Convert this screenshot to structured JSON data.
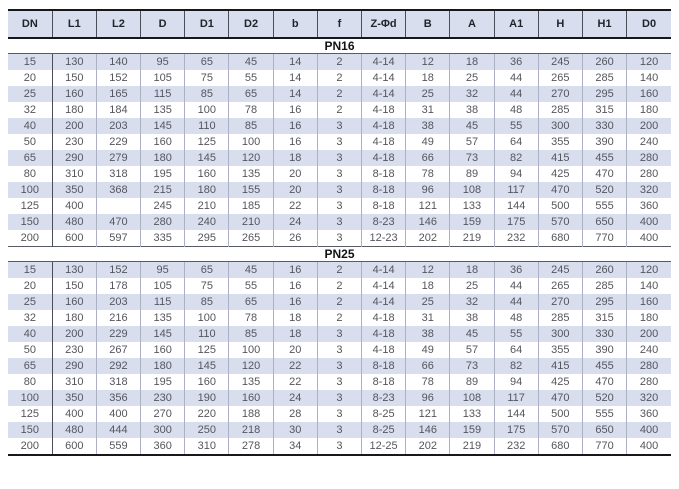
{
  "table": {
    "columns": [
      "DN",
      "L1",
      "L2",
      "D",
      "D1",
      "D2",
      "b",
      "f",
      "Z-Φd",
      "B",
      "A",
      "A1",
      "H",
      "H1",
      "D0"
    ],
    "sections": [
      {
        "label": "PN16",
        "rows": [
          [
            "15",
            "130",
            "140",
            "95",
            "65",
            "45",
            "14",
            "2",
            "4-14",
            "12",
            "18",
            "36",
            "245",
            "260",
            "120"
          ],
          [
            "20",
            "150",
            "152",
            "105",
            "75",
            "55",
            "14",
            "2",
            "4-14",
            "18",
            "25",
            "44",
            "265",
            "285",
            "140"
          ],
          [
            "25",
            "160",
            "165",
            "115",
            "85",
            "65",
            "14",
            "2",
            "4-14",
            "25",
            "32",
            "44",
            "270",
            "295",
            "160"
          ],
          [
            "32",
            "180",
            "184",
            "135",
            "100",
            "78",
            "16",
            "2",
            "4-18",
            "31",
            "38",
            "48",
            "285",
            "315",
            "180"
          ],
          [
            "40",
            "200",
            "203",
            "145",
            "110",
            "85",
            "16",
            "3",
            "4-18",
            "38",
            "45",
            "55",
            "300",
            "330",
            "200"
          ],
          [
            "50",
            "230",
            "229",
            "160",
            "125",
            "100",
            "16",
            "3",
            "4-18",
            "49",
            "57",
            "64",
            "355",
            "390",
            "240"
          ],
          [
            "65",
            "290",
            "279",
            "180",
            "145",
            "120",
            "18",
            "3",
            "4-18",
            "66",
            "73",
            "82",
            "415",
            "455",
            "280"
          ],
          [
            "80",
            "310",
            "318",
            "195",
            "160",
            "135",
            "20",
            "3",
            "8-18",
            "78",
            "89",
            "94",
            "425",
            "470",
            "280"
          ],
          [
            "100",
            "350",
            "368",
            "215",
            "180",
            "155",
            "20",
            "3",
            "8-18",
            "96",
            "108",
            "117",
            "470",
            "520",
            "320"
          ],
          [
            "125",
            "400",
            "",
            "245",
            "210",
            "185",
            "22",
            "3",
            "8-18",
            "121",
            "133",
            "144",
            "500",
            "555",
            "360"
          ],
          [
            "150",
            "480",
            "470",
            "280",
            "240",
            "210",
            "24",
            "3",
            "8-23",
            "146",
            "159",
            "175",
            "570",
            "650",
            "400"
          ],
          [
            "200",
            "600",
            "597",
            "335",
            "295",
            "265",
            "26",
            "3",
            "12-23",
            "202",
            "219",
            "232",
            "680",
            "770",
            "400"
          ]
        ]
      },
      {
        "label": "PN25",
        "rows": [
          [
            "15",
            "130",
            "152",
            "95",
            "65",
            "45",
            "16",
            "2",
            "4-14",
            "12",
            "18",
            "36",
            "245",
            "260",
            "120"
          ],
          [
            "20",
            "150",
            "178",
            "105",
            "75",
            "55",
            "16",
            "2",
            "4-14",
            "18",
            "25",
            "44",
            "265",
            "285",
            "140"
          ],
          [
            "25",
            "160",
            "203",
            "115",
            "85",
            "65",
            "16",
            "2",
            "4-14",
            "25",
            "32",
            "44",
            "270",
            "295",
            "160"
          ],
          [
            "32",
            "180",
            "216",
            "135",
            "100",
            "78",
            "18",
            "2",
            "4-18",
            "31",
            "38",
            "48",
            "285",
            "315",
            "180"
          ],
          [
            "40",
            "200",
            "229",
            "145",
            "110",
            "85",
            "18",
            "3",
            "4-18",
            "38",
            "45",
            "55",
            "300",
            "330",
            "200"
          ],
          [
            "50",
            "230",
            "267",
            "160",
            "125",
            "100",
            "20",
            "3",
            "4-18",
            "49",
            "57",
            "64",
            "355",
            "390",
            "240"
          ],
          [
            "65",
            "290",
            "292",
            "180",
            "145",
            "120",
            "22",
            "3",
            "8-18",
            "66",
            "73",
            "82",
            "415",
            "455",
            "280"
          ],
          [
            "80",
            "310",
            "318",
            "195",
            "160",
            "135",
            "22",
            "3",
            "8-18",
            "78",
            "89",
            "94",
            "425",
            "470",
            "280"
          ],
          [
            "100",
            "350",
            "356",
            "230",
            "190",
            "160",
            "24",
            "3",
            "8-23",
            "96",
            "108",
            "117",
            "470",
            "520",
            "320"
          ],
          [
            "125",
            "400",
            "400",
            "270",
            "220",
            "188",
            "28",
            "3",
            "8-25",
            "121",
            "133",
            "144",
            "500",
            "555",
            "360"
          ],
          [
            "150",
            "480",
            "444",
            "300",
            "250",
            "218",
            "30",
            "3",
            "8-25",
            "146",
            "159",
            "175",
            "570",
            "650",
            "400"
          ],
          [
            "200",
            "600",
            "559",
            "360",
            "310",
            "278",
            "34",
            "3",
            "12-25",
            "202",
            "219",
            "232",
            "680",
            "770",
            "400"
          ]
        ]
      }
    ]
  },
  "colors": {
    "row_shade": "#d9deef",
    "header_background": "#d9deef",
    "heavy_border": "#17181d",
    "light_grid_line": "#abb1c2",
    "dark_grid_line": "#4a4e59",
    "data_text": "#54565c",
    "header_text": "#22242c"
  }
}
